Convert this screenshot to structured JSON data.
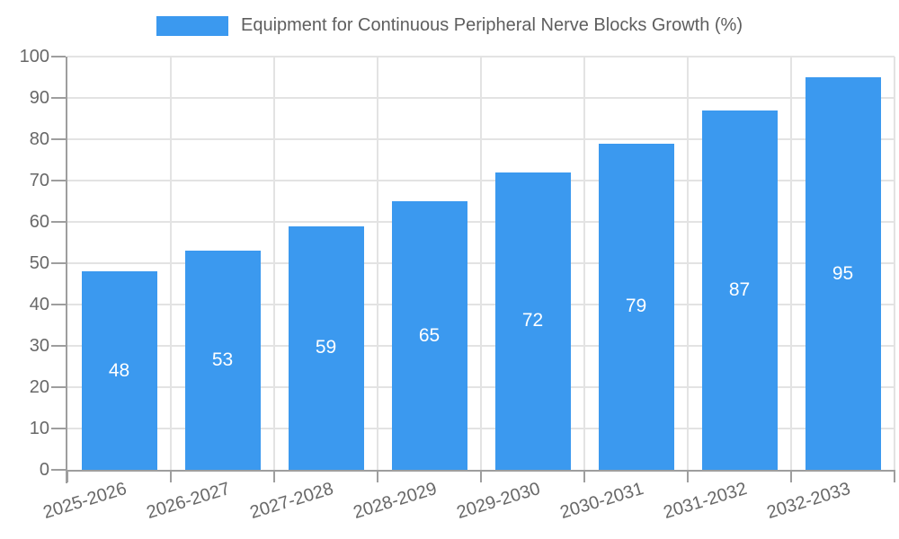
{
  "chart_data": {
    "type": "bar",
    "legend": "Equipment for Continuous Peripheral Nerve Blocks Growth (%)",
    "series_name": "Equipment for Continuous Peripheral Nerve Blocks Growth (%)",
    "categories": [
      "2025-2026",
      "2026-2027",
      "2027-2028",
      "2028-2029",
      "2029-2030",
      "2030-2031",
      "2031-2032",
      "2032-2033"
    ],
    "values": [
      48,
      53,
      59,
      65,
      72,
      79,
      87,
      95
    ],
    "value_labels": [
      "48",
      "53",
      "59",
      "65",
      "72",
      "79",
      "87",
      "95"
    ],
    "xlabel": "",
    "ylabel": "",
    "ylim": [
      0,
      100
    ],
    "yticks": [
      0,
      10,
      20,
      30,
      40,
      50,
      60,
      70,
      80,
      90,
      100
    ],
    "grid": "horizontal and vertical gridlines on",
    "legend_position": "top-center",
    "value_label_position": "centered inside bar"
  },
  "colors": {
    "bar": "#3B99EF",
    "grid": "#E3E3E3",
    "axis": "#9E9E9E",
    "axis_text": "#686868",
    "legend_text": "#5E5E5E",
    "value_text": "#FFFFFF",
    "background": "#FFFFFF"
  }
}
